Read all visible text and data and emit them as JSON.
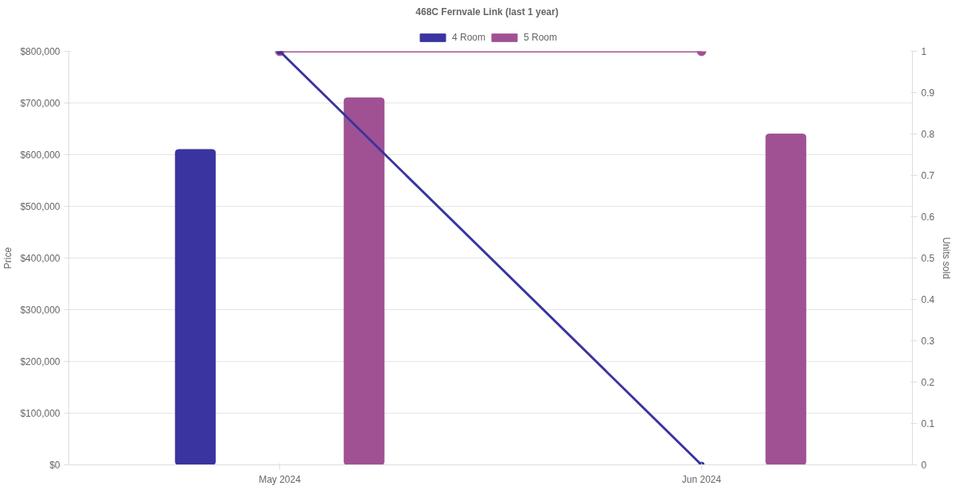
{
  "chart_data": {
    "type": "bar",
    "title": "468C Fernvale Link (last 1 year)",
    "categories": [
      "May 2024",
      "Jun 2024"
    ],
    "ylabel": "Price",
    "y2label": "Units sold",
    "series": [
      {
        "name": "4 Room",
        "color": "#3934a0",
        "values": [
          610000,
          null
        ]
      },
      {
        "name": "5 Room",
        "color": "#a05193",
        "values": [
          710000,
          640000
        ]
      },
      {
        "type": "line",
        "axis": "y2",
        "color": "#3934a0",
        "values": [
          1,
          0
        ]
      },
      {
        "type": "line",
        "axis": "y2",
        "color": "#a05193",
        "values": [
          1,
          1
        ]
      }
    ],
    "ylim": [
      0,
      800000
    ],
    "yticks": [
      {
        "value": 0,
        "label": "$0"
      },
      {
        "value": 100000,
        "label": "$100,000"
      },
      {
        "value": 200000,
        "label": "$200,000"
      },
      {
        "value": 300000,
        "label": "$300,000"
      },
      {
        "value": 400000,
        "label": "$400,000"
      },
      {
        "value": 500000,
        "label": "$500,000"
      },
      {
        "value": 600000,
        "label": "$600,000"
      },
      {
        "value": 700000,
        "label": "$700,000"
      },
      {
        "value": 800000,
        "label": "$800,000"
      }
    ],
    "y2lim": [
      0,
      1
    ],
    "y2ticks": [
      0,
      0.1,
      0.2,
      0.3,
      0.4,
      0.5,
      0.6,
      0.7,
      0.8,
      0.9,
      1
    ],
    "grid": "y",
    "legend": "top",
    "marker": "circle",
    "line_style": "solid"
  }
}
